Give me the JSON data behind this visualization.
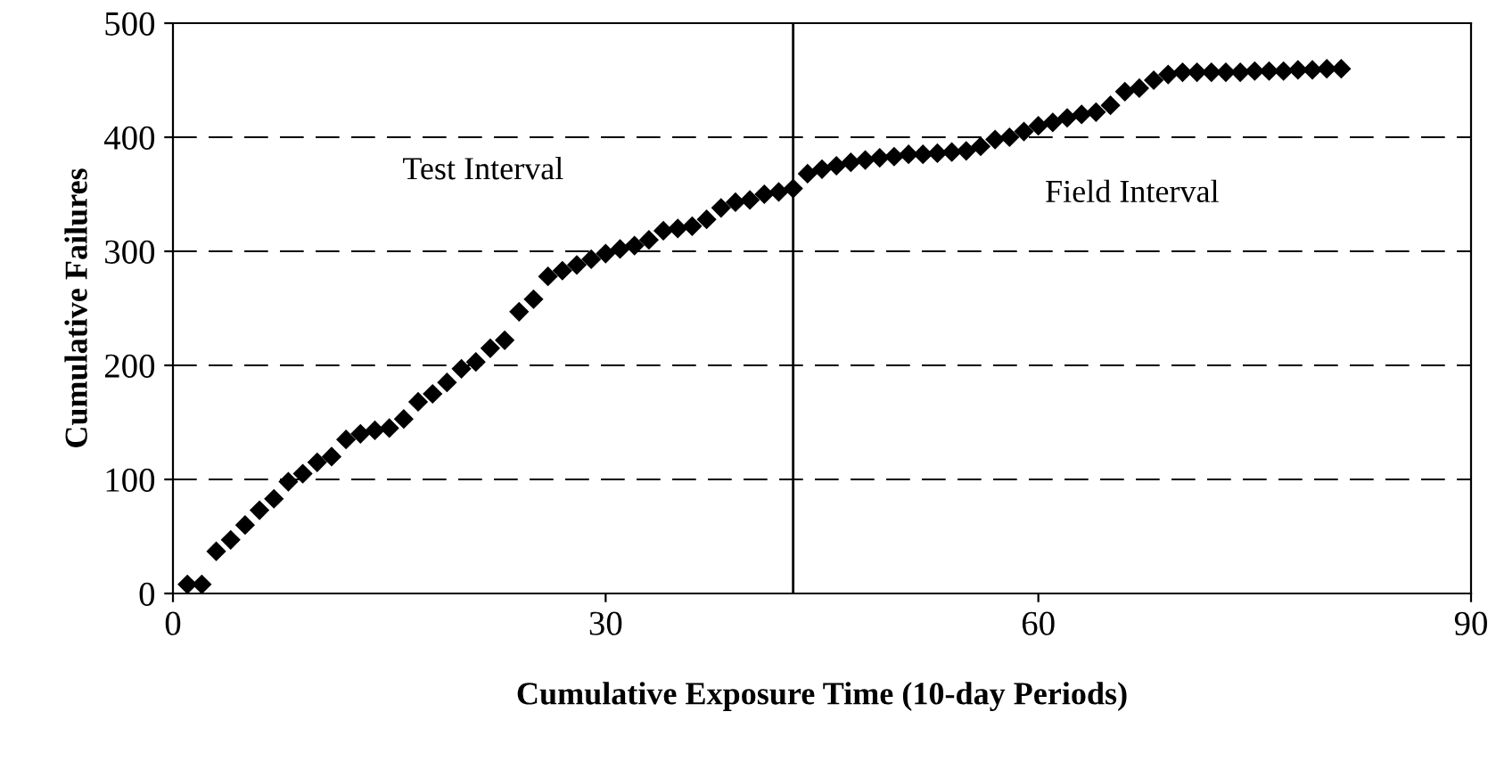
{
  "chart_data": {
    "type": "scatter",
    "xlabel": "Cumulative Exposure Time (10-day Periods)",
    "ylabel": "Cumulative Failures",
    "x": [
      1,
      2,
      3,
      4,
      5,
      6,
      7,
      8,
      9,
      10,
      11,
      12,
      13,
      14,
      15,
      16,
      17,
      18,
      19,
      20,
      21,
      22,
      23,
      24,
      25,
      26,
      27,
      28,
      29,
      30,
      31,
      32,
      33,
      34,
      35,
      36,
      37,
      38,
      39,
      40,
      41,
      42,
      43,
      44,
      45,
      46,
      47,
      48,
      49,
      50,
      51,
      52,
      53,
      54,
      55,
      56,
      57,
      58,
      59,
      60,
      61,
      62,
      63,
      64,
      65,
      66,
      67,
      68,
      69,
      70,
      71,
      72,
      73,
      74,
      75,
      76,
      77,
      78,
      79,
      80,
      81
    ],
    "series": [
      {
        "color": "#000000",
        "values": [
          8,
          8,
          37,
          47,
          60,
          73,
          83,
          98,
          105,
          115,
          120,
          135,
          140,
          143,
          145,
          153,
          168,
          175,
          185,
          197,
          203,
          215,
          222,
          247,
          258,
          278,
          283,
          288,
          293,
          298,
          302,
          305,
          310,
          318,
          320,
          322,
          328,
          338,
          343,
          345,
          350,
          352,
          355,
          368,
          372,
          375,
          378,
          380,
          382,
          383,
          385,
          385,
          386,
          387,
          388,
          392,
          398,
          400,
          405,
          410,
          413,
          417,
          420,
          422,
          428,
          440,
          443,
          450,
          455,
          457,
          457,
          457,
          457,
          457,
          458,
          458,
          458,
          459,
          459,
          460,
          460
        ]
      }
    ],
    "marker": "diamond",
    "xlim": [
      0,
      90
    ],
    "xticks": [
      0,
      30,
      60,
      90
    ],
    "ylim": [
      0,
      500
    ],
    "yticks": [
      0,
      100,
      200,
      300,
      400,
      500
    ],
    "grid": "y",
    "ref_lines": [
      {
        "axis": "x",
        "value": 43,
        "color": "#000000",
        "line_style": "solid"
      }
    ],
    "annotations": [
      "Test Interval",
      "Field Interval"
    ]
  }
}
